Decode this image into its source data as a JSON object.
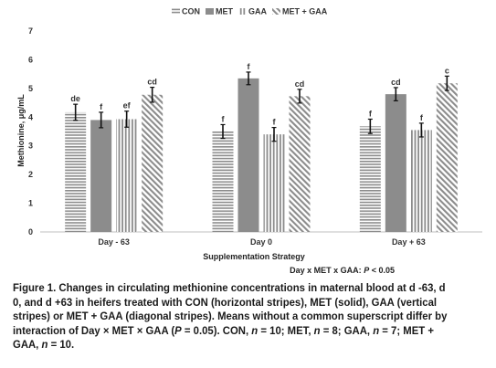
{
  "chart_data": {
    "type": "bar",
    "categories": [
      "Day - 63",
      "Day 0",
      "Day + 63"
    ],
    "series": [
      {
        "name": "CON",
        "pattern": "horizontal-stripes",
        "values": [
          4.17,
          3.5,
          3.68
        ],
        "errors": [
          0.28,
          0.24,
          0.25
        ],
        "letters": [
          "de",
          "f",
          "f"
        ]
      },
      {
        "name": "MET",
        "pattern": "solid",
        "values": [
          3.9,
          5.35,
          4.8
        ],
        "errors": [
          0.27,
          0.22,
          0.23
        ],
        "letters": [
          "f",
          "f",
          "cd"
        ]
      },
      {
        "name": "GAA",
        "pattern": "vertical-stripes",
        "values": [
          3.93,
          3.4,
          3.55
        ],
        "errors": [
          0.28,
          0.24,
          0.24
        ],
        "letters": [
          "ef",
          "f",
          "f"
        ]
      },
      {
        "name": "MET + GAA",
        "pattern": "diagonal-stripes",
        "values": [
          4.78,
          4.73,
          5.18
        ],
        "errors": [
          0.26,
          0.24,
          0.25
        ],
        "letters": [
          "cd",
          "cd",
          "c"
        ]
      }
    ],
    "title": "",
    "xlabel": "Supplementation Strategy",
    "ylabel": "Methionine, μg/mL",
    "ylim": [
      0,
      7
    ],
    "yticks": [
      0,
      1,
      2,
      3,
      4,
      5,
      6,
      7
    ],
    "grid": false,
    "legend_position": "top",
    "annotation": {
      "text": "Day x MET x GAA:",
      "p_label": "P",
      "p_value": "< 0.05"
    },
    "colors": {
      "bar": "#8c8c8c",
      "axis": "#bfbfbf",
      "error": "#111111"
    }
  },
  "caption": {
    "fig_label": "Figure 1.",
    "p1": " Changes in circulating methionine concentrations in maternal blood at d -63, d 0, and d +63 in heifers treated with CON (horizontal stripes), MET (solid), GAA (vertical stripes) or MET + GAA (diagonal stripes). Means without a common superscript differ by interaction of Day × MET × GAA (",
    "p_symbol": "P",
    "p2": " = 0.05). CON, ",
    "n_sym_1": "n",
    "p3": " = 10; MET, ",
    "n_sym_2": "n",
    "p4": " = 8; GAA, ",
    "n_sym_3": "n",
    "p5": " = 7; MET + GAA, ",
    "n_sym_4": "n",
    "p6": " = 10."
  }
}
